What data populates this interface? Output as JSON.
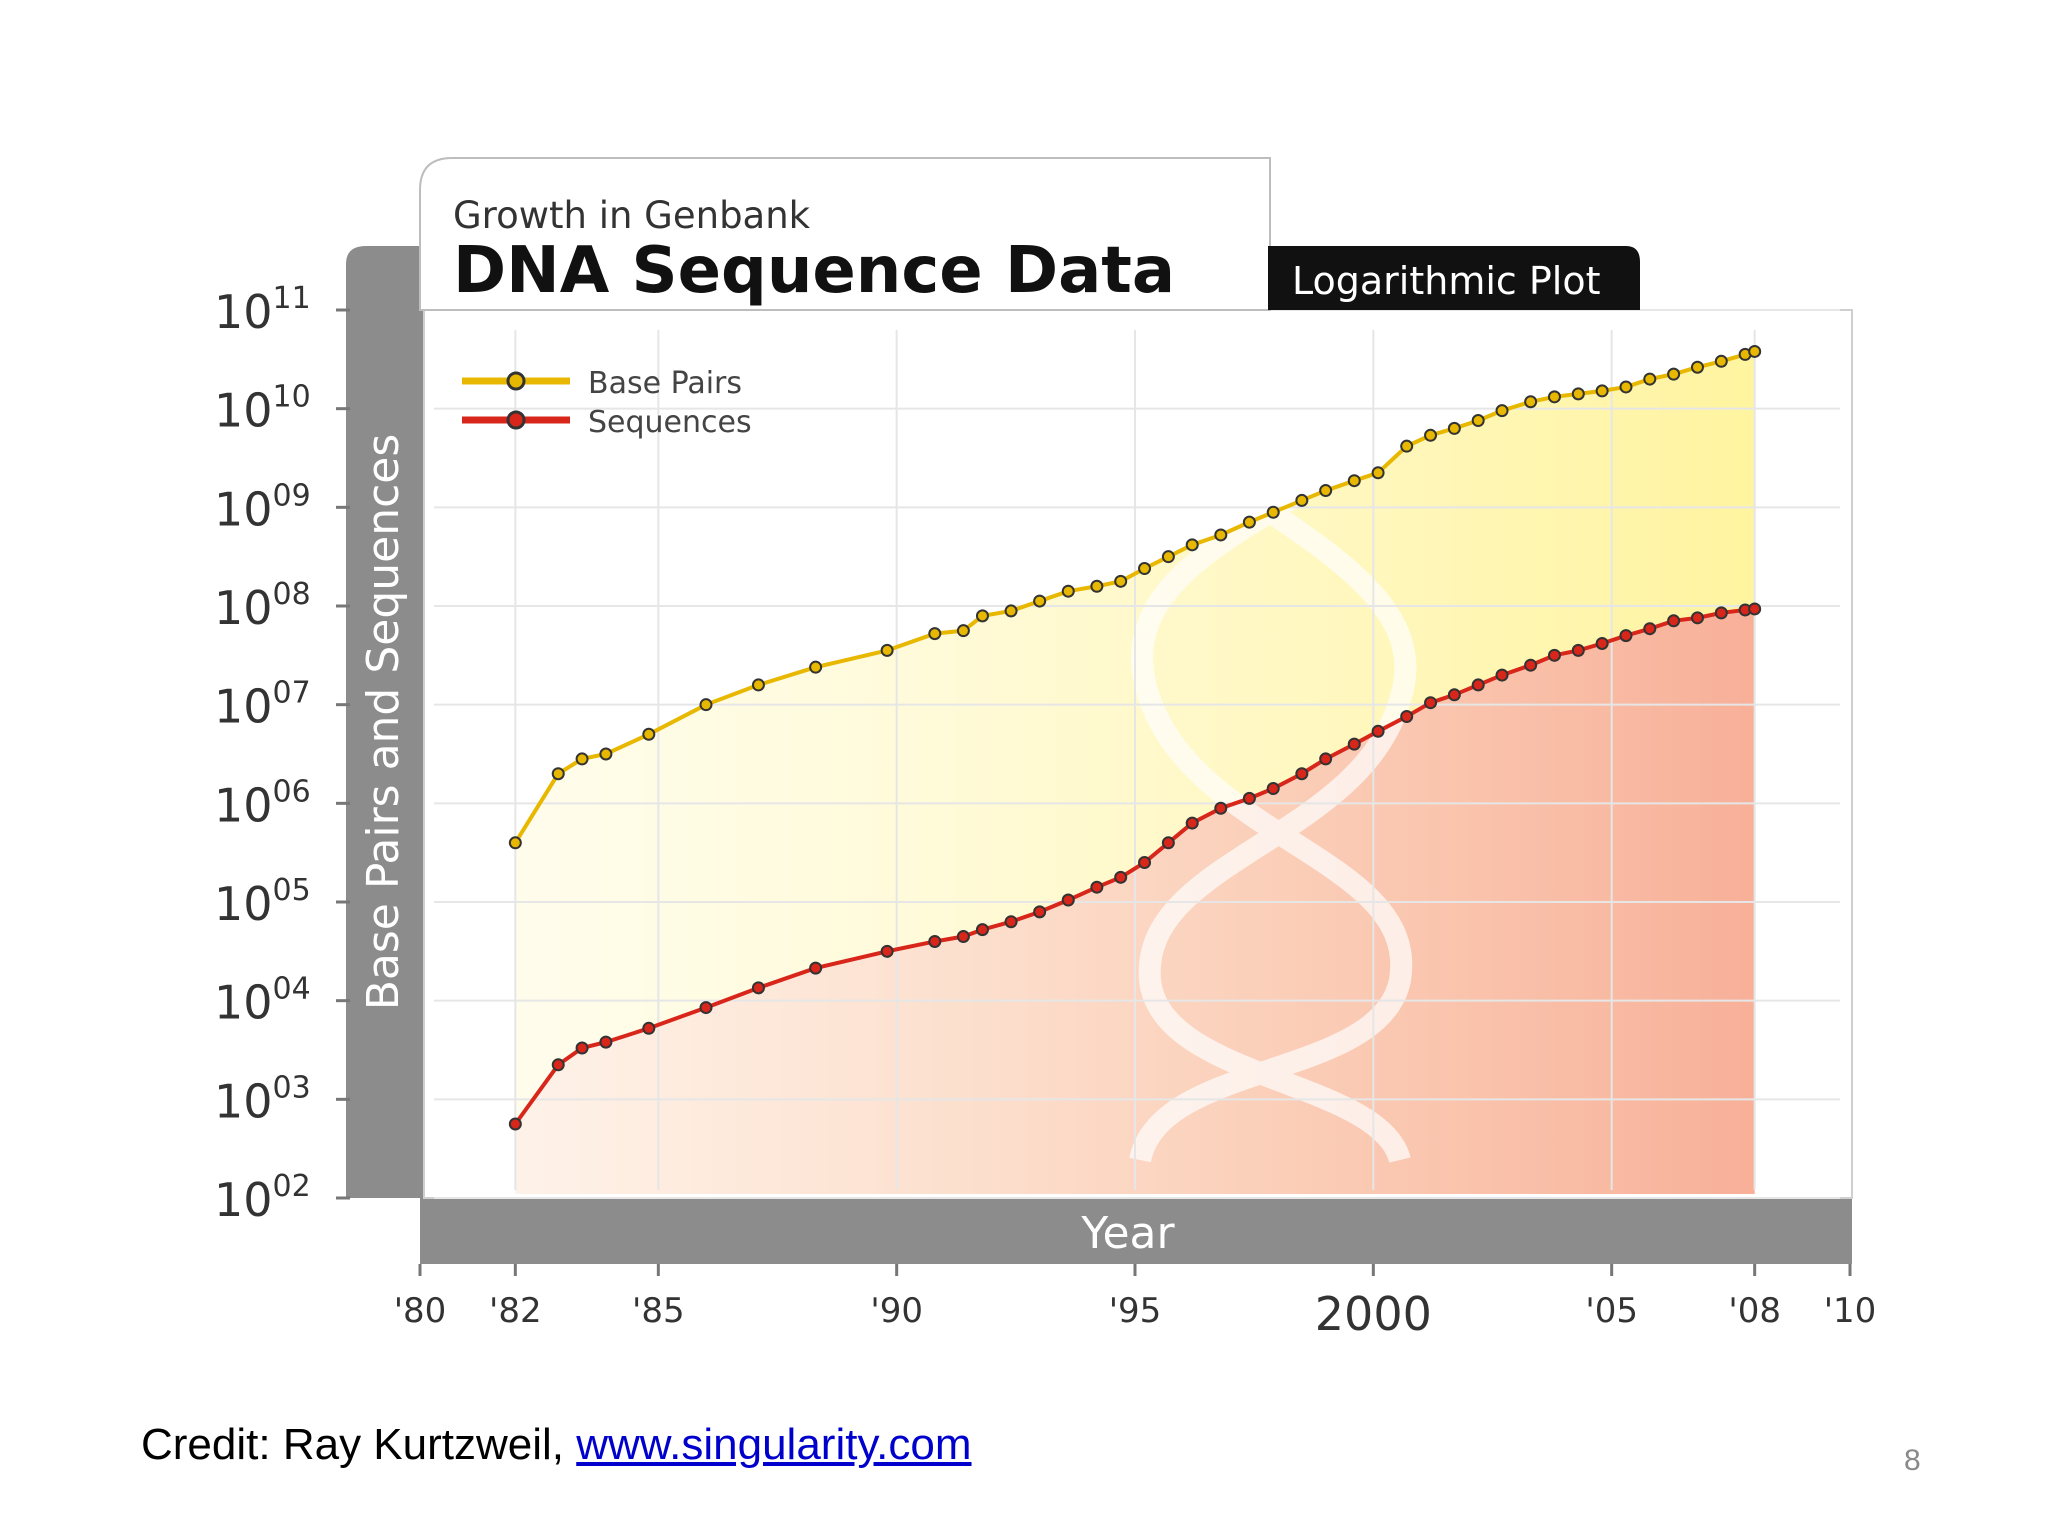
{
  "chart_data": {
    "type": "line",
    "subtitle": "Growth in Genbank",
    "title": "DNA Sequence Data",
    "badge": "Logarithmic Plot",
    "xlabel": "Year",
    "ylabel": "Base Pairs and Sequences",
    "yscale": "log",
    "ylim": [
      100,
      100000000000
    ],
    "xlim": [
      1980,
      2010
    ],
    "y_ticks": [
      {
        "base": "10",
        "exp": "11",
        "value": 100000000000
      },
      {
        "base": "10",
        "exp": "10",
        "value": 10000000000
      },
      {
        "base": "10",
        "exp": "09",
        "value": 1000000000
      },
      {
        "base": "10",
        "exp": "08",
        "value": 100000000
      },
      {
        "base": "10",
        "exp": "07",
        "value": 10000000
      },
      {
        "base": "10",
        "exp": "06",
        "value": 1000000
      },
      {
        "base": "10",
        "exp": "05",
        "value": 100000
      },
      {
        "base": "10",
        "exp": "04",
        "value": 10000
      },
      {
        "base": "10",
        "exp": "03",
        "value": 1000
      },
      {
        "base": "10",
        "exp": "02",
        "value": 100
      }
    ],
    "x_ticks": [
      {
        "label": "'80",
        "value": 1980
      },
      {
        "label": "'82",
        "value": 1982
      },
      {
        "label": "'85",
        "value": 1985
      },
      {
        "label": "'90",
        "value": 1990
      },
      {
        "label": "'95",
        "value": 1995
      },
      {
        "label": "2000",
        "value": 2000
      },
      {
        "label": "'05",
        "value": 2005
      },
      {
        "label": "'08",
        "value": 2008
      },
      {
        "label": "'10",
        "value": 2010
      }
    ],
    "series": [
      {
        "name": "Base Pairs",
        "color": "#e8b800",
        "points": [
          [
            1982.0,
            5.6
          ],
          [
            1982.9,
            6.3
          ],
          [
            1983.4,
            6.45
          ],
          [
            1983.9,
            6.5
          ],
          [
            1984.8,
            6.7
          ],
          [
            1986.0,
            7.0
          ],
          [
            1987.1,
            7.2
          ],
          [
            1988.3,
            7.38
          ],
          [
            1989.8,
            7.55
          ],
          [
            1990.8,
            7.72
          ],
          [
            1991.4,
            7.75
          ],
          [
            1991.8,
            7.9
          ],
          [
            1992.4,
            7.95
          ],
          [
            1993.0,
            8.05
          ],
          [
            1993.6,
            8.15
          ],
          [
            1994.2,
            8.2
          ],
          [
            1994.7,
            8.25
          ],
          [
            1995.2,
            8.38
          ],
          [
            1995.7,
            8.5
          ],
          [
            1996.2,
            8.62
          ],
          [
            1996.8,
            8.72
          ],
          [
            1997.4,
            8.85
          ],
          [
            1997.9,
            8.95
          ],
          [
            1998.5,
            9.07
          ],
          [
            1999.0,
            9.17
          ],
          [
            1999.6,
            9.27
          ],
          [
            2000.1,
            9.35
          ],
          [
            2000.7,
            9.62
          ],
          [
            2001.2,
            9.73
          ],
          [
            2001.7,
            9.8
          ],
          [
            2002.2,
            9.88
          ],
          [
            2002.7,
            9.98
          ],
          [
            2003.3,
            10.07
          ],
          [
            2003.8,
            10.12
          ],
          [
            2004.3,
            10.15
          ],
          [
            2004.8,
            10.18
          ],
          [
            2005.3,
            10.22
          ],
          [
            2005.8,
            10.3
          ],
          [
            2006.3,
            10.35
          ],
          [
            2006.8,
            10.42
          ],
          [
            2007.3,
            10.48
          ],
          [
            2007.8,
            10.55
          ],
          [
            2008.0,
            10.58
          ]
        ]
      },
      {
        "name": "Sequences",
        "color": "#d8261b",
        "points": [
          [
            1982.0,
            2.75
          ],
          [
            1982.9,
            3.35
          ],
          [
            1983.4,
            3.52
          ],
          [
            1983.9,
            3.58
          ],
          [
            1984.8,
            3.72
          ],
          [
            1986.0,
            3.93
          ],
          [
            1987.1,
            4.13
          ],
          [
            1988.3,
            4.33
          ],
          [
            1989.8,
            4.5
          ],
          [
            1990.8,
            4.6
          ],
          [
            1991.4,
            4.65
          ],
          [
            1991.8,
            4.72
          ],
          [
            1992.4,
            4.8
          ],
          [
            1993.0,
            4.9
          ],
          [
            1993.6,
            5.02
          ],
          [
            1994.2,
            5.15
          ],
          [
            1994.7,
            5.25
          ],
          [
            1995.2,
            5.4
          ],
          [
            1995.7,
            5.6
          ],
          [
            1996.2,
            5.8
          ],
          [
            1996.8,
            5.95
          ],
          [
            1997.4,
            6.05
          ],
          [
            1997.9,
            6.15
          ],
          [
            1998.5,
            6.3
          ],
          [
            1999.0,
            6.45
          ],
          [
            1999.6,
            6.6
          ],
          [
            2000.1,
            6.73
          ],
          [
            2000.7,
            6.88
          ],
          [
            2001.2,
            7.02
          ],
          [
            2001.7,
            7.1
          ],
          [
            2002.2,
            7.2
          ],
          [
            2002.7,
            7.3
          ],
          [
            2003.3,
            7.4
          ],
          [
            2003.8,
            7.5
          ],
          [
            2004.3,
            7.55
          ],
          [
            2004.8,
            7.62
          ],
          [
            2005.3,
            7.7
          ],
          [
            2005.8,
            7.77
          ],
          [
            2006.3,
            7.85
          ],
          [
            2006.8,
            7.88
          ],
          [
            2007.3,
            7.93
          ],
          [
            2007.8,
            7.96
          ],
          [
            2008.0,
            7.97
          ]
        ]
      }
    ]
  },
  "footer": {
    "credit_prefix": "Credit: Ray Kurtzweil, ",
    "credit_link": "www.singularity.com",
    "slide_number": "8"
  }
}
